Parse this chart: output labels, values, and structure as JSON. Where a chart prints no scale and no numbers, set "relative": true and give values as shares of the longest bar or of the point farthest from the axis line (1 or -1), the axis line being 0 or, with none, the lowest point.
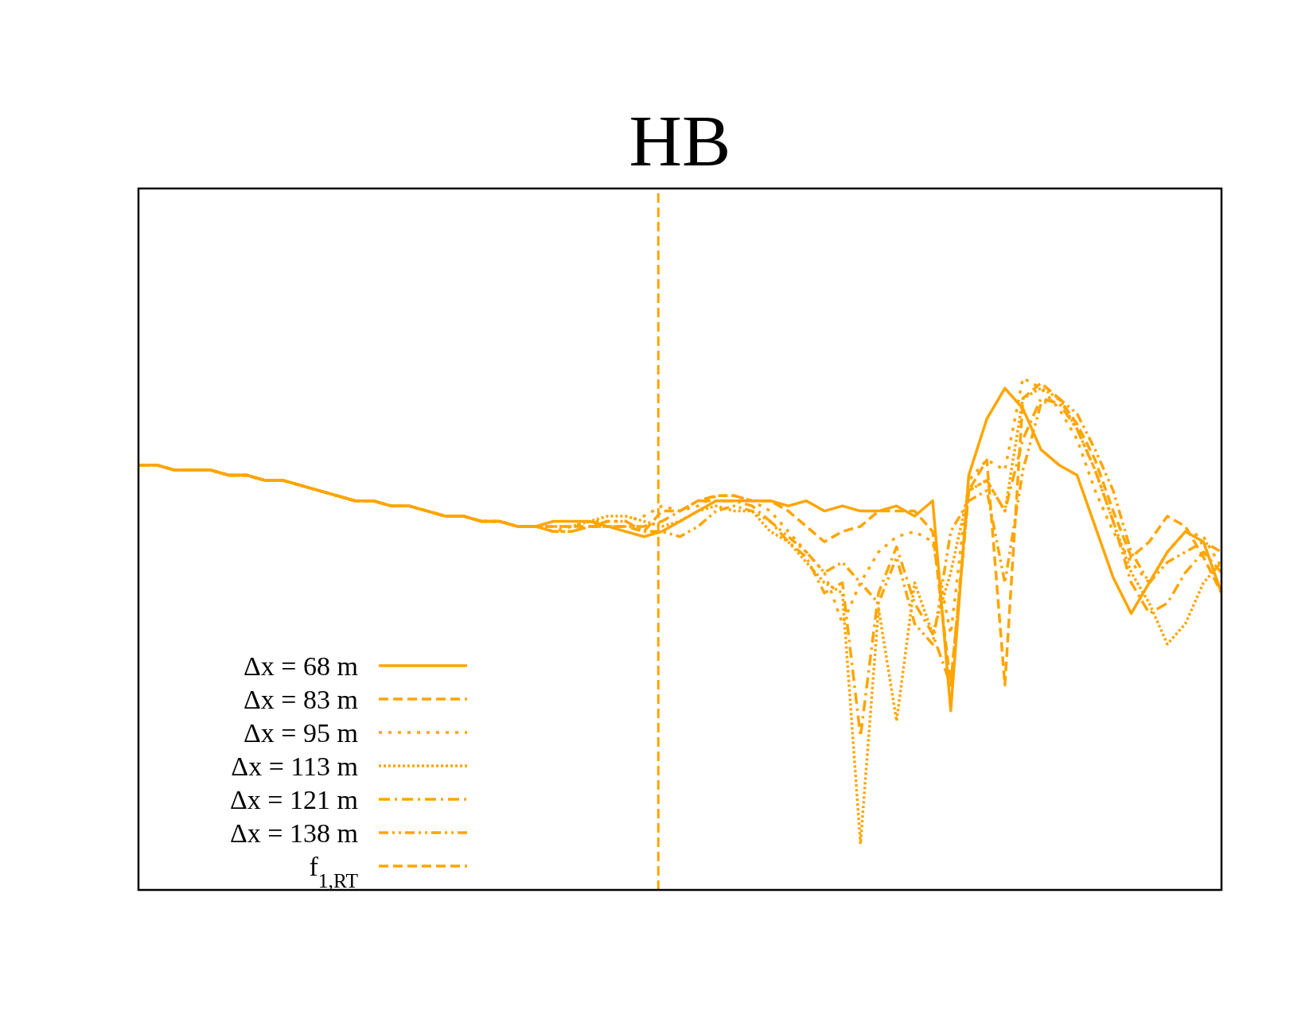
{
  "chart_data": {
    "type": "line",
    "title": "HB",
    "relative": true,
    "legend": "bottom left",
    "categories": [
      null,
      null,
      null,
      null,
      null,
      null,
      null,
      null,
      null,
      null,
      null,
      null,
      null,
      null,
      null,
      null,
      null,
      null,
      null,
      null,
      null,
      null,
      null,
      null,
      null,
      null,
      null,
      null,
      null,
      null,
      null,
      null,
      null,
      null,
      null,
      null,
      null,
      null,
      null,
      null,
      null,
      null,
      null,
      null,
      null,
      null,
      null,
      null,
      null,
      null,
      null,
      null,
      null,
      null,
      null,
      null,
      null,
      null,
      null,
      null,
      null
    ],
    "series": [
      {
        "name": "Δx = 68 m",
        "color": "#ffa500",
        "line_style": "solid",
        "values": [
          0.83,
          0.83,
          0.82,
          0.82,
          0.82,
          0.81,
          0.81,
          0.8,
          0.8,
          0.79,
          0.78,
          0.77,
          0.76,
          0.76,
          0.75,
          0.75,
          0.74,
          0.73,
          0.73,
          0.72,
          0.72,
          0.71,
          0.71,
          0.72,
          0.72,
          0.72,
          0.71,
          0.7,
          0.69,
          0.7,
          0.72,
          0.74,
          0.76,
          0.76,
          0.76,
          0.76,
          0.75,
          0.76,
          0.74,
          0.75,
          0.74,
          0.74,
          0.75,
          0.73,
          0.76,
          0.35,
          0.81,
          0.92,
          0.98,
          0.94,
          0.86,
          0.83,
          0.81,
          0.71,
          0.61,
          0.54,
          0.6,
          0.66,
          0.7,
          0.68,
          0.58
        ]
      },
      {
        "name": "Δx = 83 m",
        "color": "#ffa500",
        "line_style": "dashed",
        "values": [
          0.83,
          0.83,
          0.82,
          0.82,
          0.82,
          0.81,
          0.81,
          0.8,
          0.8,
          0.79,
          0.78,
          0.77,
          0.76,
          0.76,
          0.75,
          0.75,
          0.74,
          0.73,
          0.73,
          0.72,
          0.72,
          0.71,
          0.71,
          0.71,
          0.71,
          0.71,
          0.71,
          0.71,
          0.7,
          0.74,
          0.74,
          0.76,
          0.77,
          0.77,
          0.76,
          0.76,
          0.74,
          0.71,
          0.68,
          0.7,
          0.71,
          0.74,
          0.74,
          0.74,
          0.7,
          0.4,
          0.78,
          0.84,
          0.4,
          0.96,
          0.99,
          0.96,
          0.91,
          0.84,
          0.74,
          0.65,
          0.68,
          0.73,
          0.71,
          0.65,
          0.58
        ]
      },
      {
        "name": "Δx = 95 m",
        "color": "#ffa500",
        "line_style": "dotted",
        "values": [
          0.83,
          0.83,
          0.82,
          0.82,
          0.82,
          0.81,
          0.81,
          0.8,
          0.8,
          0.79,
          0.78,
          0.77,
          0.76,
          0.76,
          0.75,
          0.75,
          0.74,
          0.73,
          0.73,
          0.72,
          0.72,
          0.71,
          0.71,
          0.7,
          0.71,
          0.72,
          0.72,
          0.72,
          0.73,
          0.75,
          0.74,
          0.75,
          0.77,
          0.77,
          0.76,
          0.74,
          0.7,
          0.66,
          0.62,
          0.52,
          0.6,
          0.66,
          0.69,
          0.7,
          0.68,
          0.5,
          0.8,
          0.84,
          0.82,
          1.0,
          0.98,
          0.94,
          0.88,
          0.78,
          0.7,
          0.64,
          0.6,
          0.66,
          0.7,
          0.69,
          0.63
        ]
      },
      {
        "name": "Δx = 113 m",
        "color": "#ffa500",
        "line_style": "dotted_dense",
        "values": [
          0.83,
          0.83,
          0.82,
          0.82,
          0.82,
          0.81,
          0.81,
          0.8,
          0.8,
          0.79,
          0.78,
          0.77,
          0.76,
          0.76,
          0.75,
          0.75,
          0.74,
          0.73,
          0.73,
          0.72,
          0.72,
          0.71,
          0.71,
          0.71,
          0.71,
          0.72,
          0.73,
          0.73,
          0.72,
          0.71,
          0.72,
          0.74,
          0.75,
          0.74,
          0.74,
          0.7,
          0.68,
          0.64,
          0.6,
          0.58,
          0.09,
          0.55,
          0.33,
          0.6,
          0.5,
          0.62,
          0.78,
          0.8,
          0.74,
          0.96,
          0.98,
          0.96,
          0.9,
          0.82,
          0.72,
          0.62,
          0.56,
          0.48,
          0.52,
          0.6,
          0.64
        ]
      },
      {
        "name": "Δx = 121 m",
        "color": "#ffa500",
        "line_style": "dashdot",
        "values": [
          0.83,
          0.83,
          0.82,
          0.82,
          0.82,
          0.81,
          0.81,
          0.8,
          0.8,
          0.79,
          0.78,
          0.77,
          0.76,
          0.76,
          0.75,
          0.75,
          0.74,
          0.73,
          0.73,
          0.72,
          0.72,
          0.71,
          0.71,
          0.7,
          0.7,
          0.71,
          0.71,
          0.71,
          0.71,
          0.72,
          0.74,
          0.76,
          0.76,
          0.76,
          0.75,
          0.72,
          0.68,
          0.65,
          0.58,
          0.6,
          0.3,
          0.58,
          0.67,
          0.56,
          0.5,
          0.4,
          0.78,
          0.8,
          0.74,
          0.88,
          0.96,
          0.95,
          0.9,
          0.82,
          0.72,
          0.6,
          0.54,
          0.56,
          0.62,
          0.66,
          0.62
        ]
      },
      {
        "name": "Δx = 138 m",
        "color": "#ffa500",
        "line_style": "dashdotdot",
        "values": [
          0.83,
          0.83,
          0.82,
          0.82,
          0.82,
          0.81,
          0.81,
          0.8,
          0.8,
          0.79,
          0.78,
          0.77,
          0.76,
          0.76,
          0.75,
          0.75,
          0.74,
          0.73,
          0.73,
          0.72,
          0.72,
          0.71,
          0.71,
          0.7,
          0.7,
          0.71,
          0.72,
          0.72,
          0.7,
          0.7,
          0.69,
          0.71,
          0.74,
          0.75,
          0.74,
          0.72,
          0.69,
          0.66,
          0.62,
          0.64,
          0.6,
          0.56,
          0.65,
          0.52,
          0.48,
          0.7,
          0.76,
          0.78,
          0.6,
          0.82,
          0.95,
          0.96,
          0.93,
          0.86,
          0.78,
          0.66,
          0.6,
          0.64,
          0.66,
          0.68,
          0.66
        ]
      }
    ],
    "annotations": [
      "f$_{1,RT}$"
    ]
  }
}
